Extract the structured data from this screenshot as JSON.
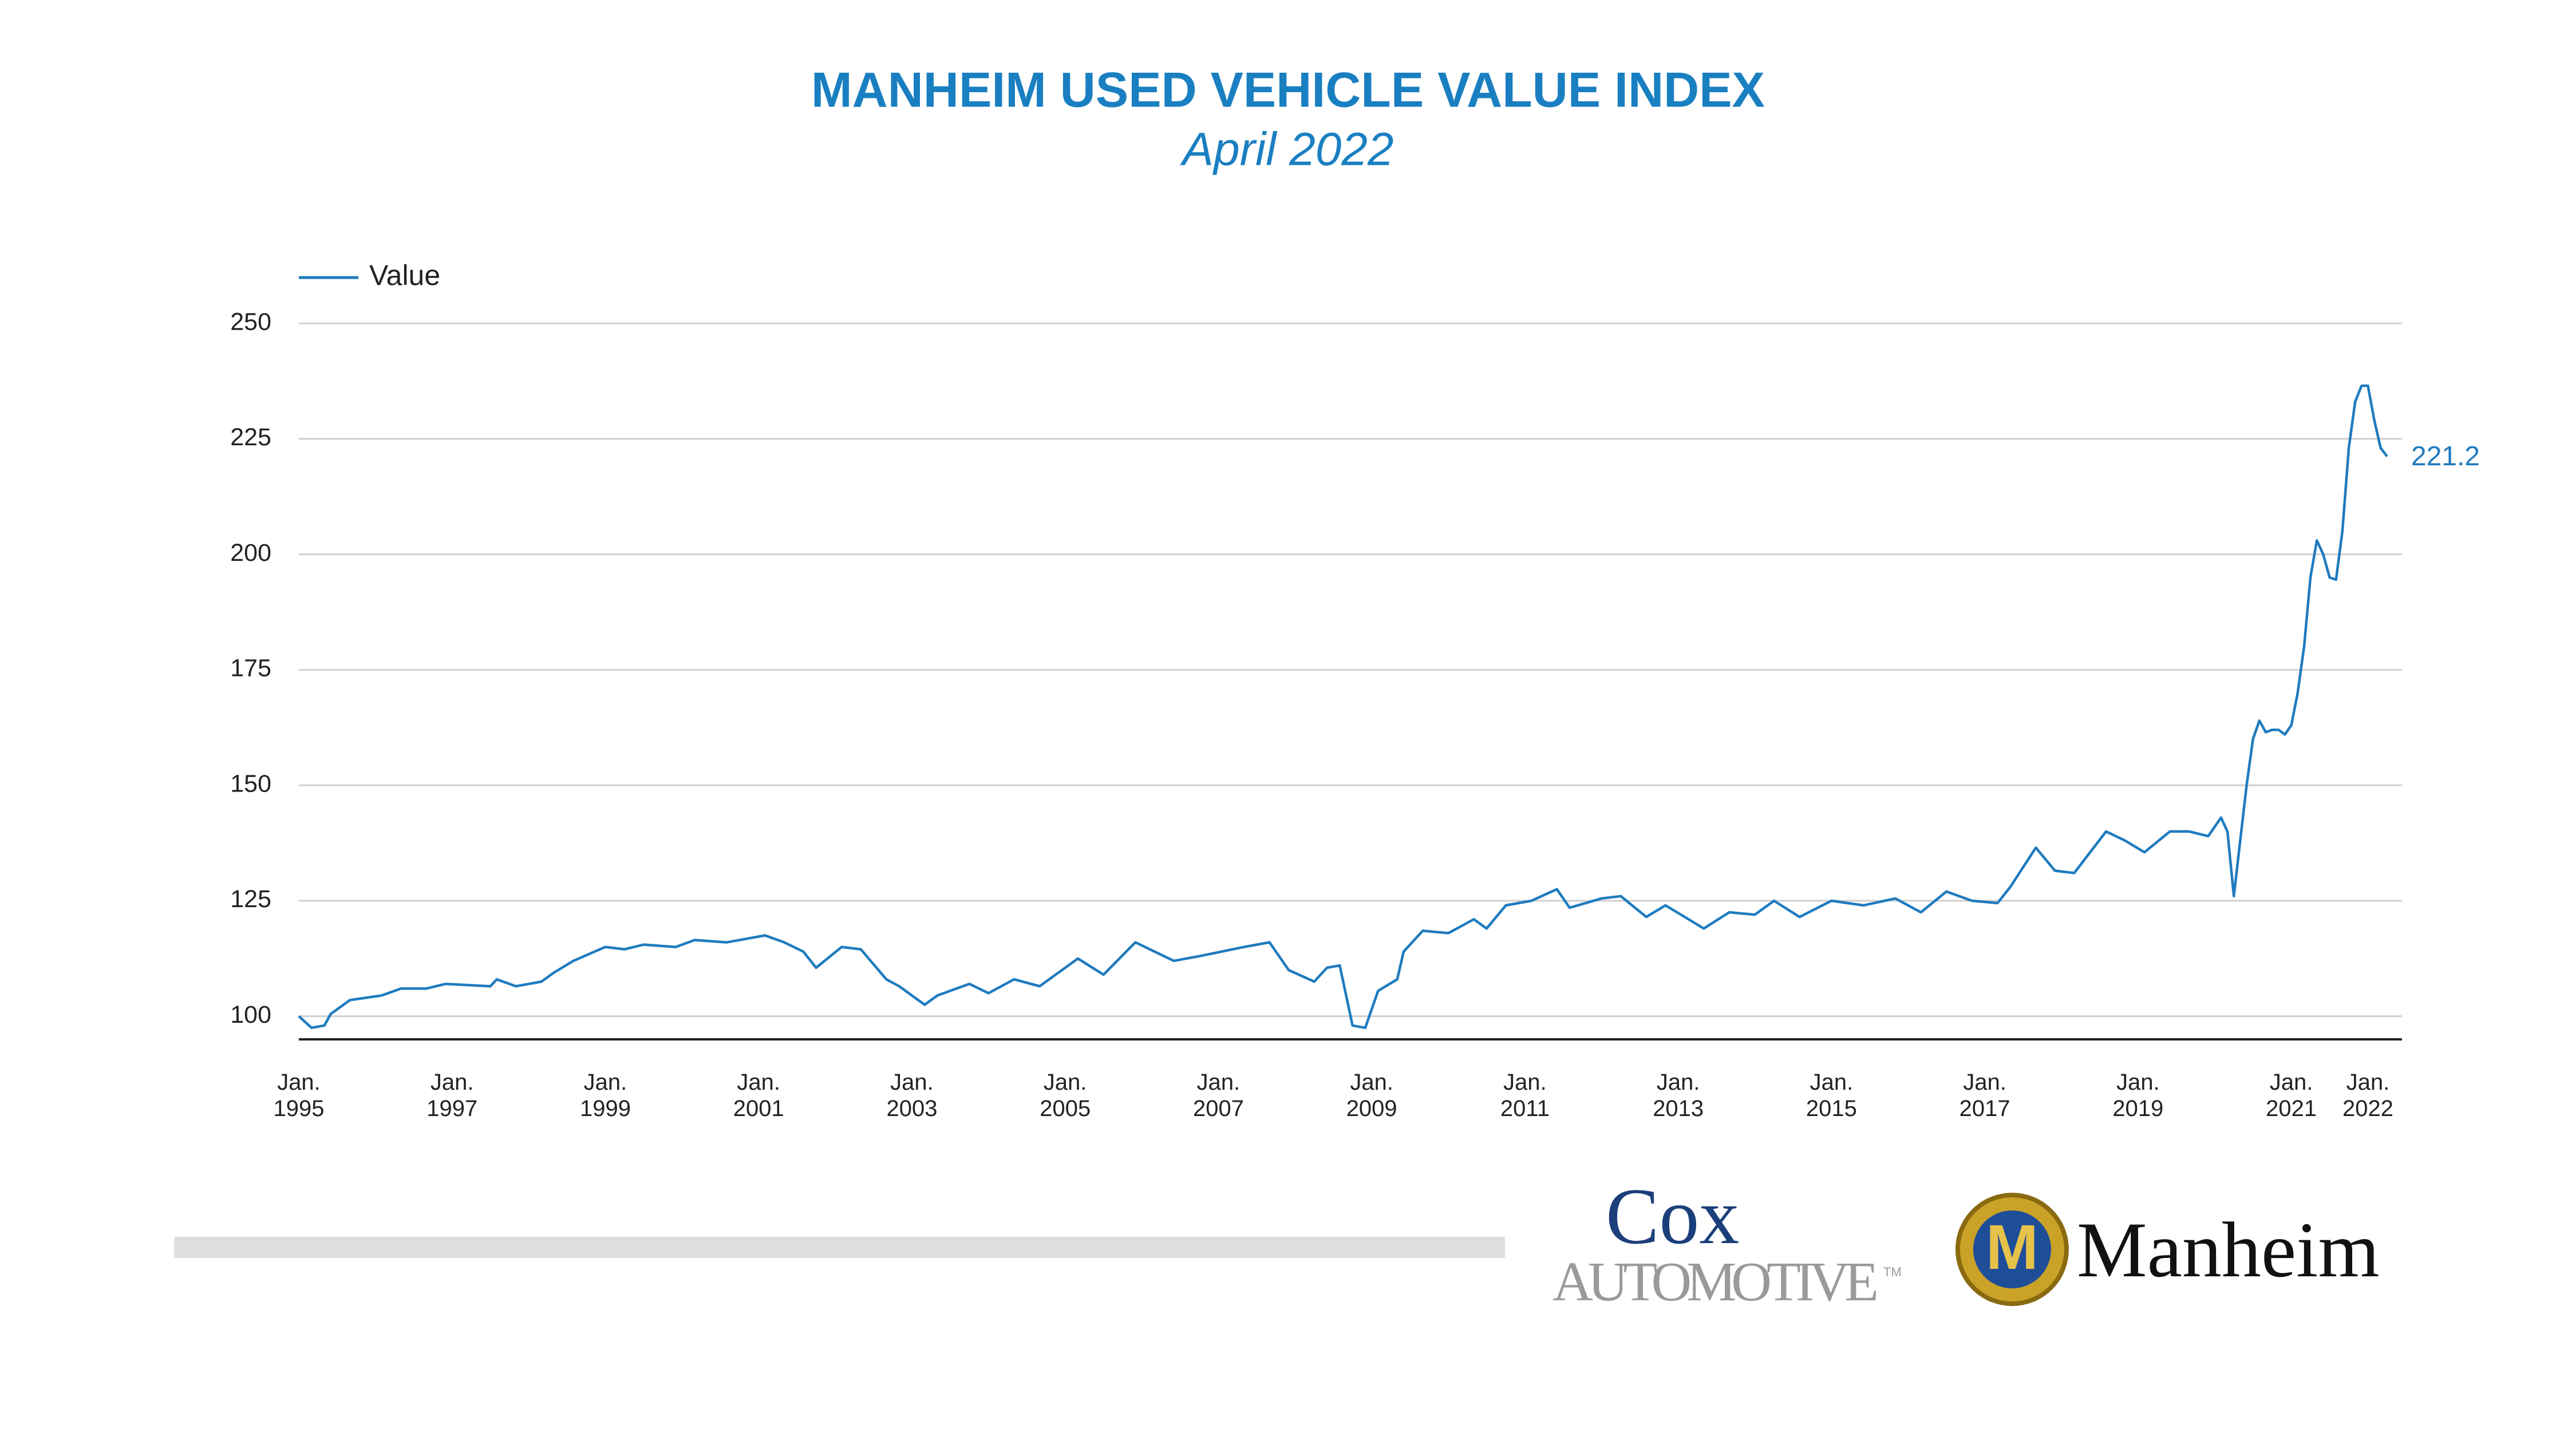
{
  "chart_data": {
    "type": "line",
    "title": "MANHEIM USED VEHICLE VALUE INDEX",
    "subtitle": "April 2022",
    "x": [
      "1995-01",
      "1995-03",
      "1995-05",
      "1995-06",
      "1995-09",
      "1996-02",
      "1996-05",
      "1996-09",
      "1996-12",
      "1997-07",
      "1997-08",
      "1997-11",
      "1998-03",
      "1998-05",
      "1998-08",
      "1999-01",
      "1999-04",
      "1999-07",
      "1999-12",
      "2000-03",
      "2000-08",
      "2001-02",
      "2001-05",
      "2001-08",
      "2001-10",
      "2002-02",
      "2002-05",
      "2002-09",
      "2002-11",
      "2003-03",
      "2003-05",
      "2003-10",
      "2004-01",
      "2004-05",
      "2004-09",
      "2005-03",
      "2005-07",
      "2005-12",
      "2006-06",
      "2006-10",
      "2007-05",
      "2007-09",
      "2007-12",
      "2008-04",
      "2008-06",
      "2008-08",
      "2008-10",
      "2008-12",
      "2009-02",
      "2009-05",
      "2009-06",
      "2009-09",
      "2010-01",
      "2010-05",
      "2010-07",
      "2010-10",
      "2011-02",
      "2011-06",
      "2011-08",
      "2012-01",
      "2012-04",
      "2012-08",
      "2012-11",
      "2013-05",
      "2013-09",
      "2014-01",
      "2014-04",
      "2014-08",
      "2015-01",
      "2015-06",
      "2015-11",
      "2016-03",
      "2016-07",
      "2016-11",
      "2017-03",
      "2017-05",
      "2017-09",
      "2017-12",
      "2018-03",
      "2018-08",
      "2018-11",
      "2019-02",
      "2019-06",
      "2019-09",
      "2019-12",
      "2020-01",
      "2020-02",
      "2020-03",
      "2020-04",
      "2020-05",
      "2020-06",
      "2020-07",
      "2020-08",
      "2020-09",
      "2020-10",
      "2020-11",
      "2020-12",
      "2021-01",
      "2021-02",
      "2021-03",
      "2021-04",
      "2021-05",
      "2021-06",
      "2021-07",
      "2021-08",
      "2021-09",
      "2021-10",
      "2021-11",
      "2021-12",
      "2022-01",
      "2022-02",
      "2022-03",
      "2022-04"
    ],
    "series": [
      {
        "name": "Value",
        "color": "#1f7bbf",
        "values": [
          100,
          97.5,
          98,
          100.5,
          103.5,
          104.5,
          106,
          106,
          107,
          106.5,
          108,
          106.5,
          107.5,
          109.5,
          112,
          115,
          114.5,
          115.5,
          115,
          116.5,
          116,
          117.5,
          116,
          114,
          110.5,
          115,
          114.5,
          108,
          106.5,
          102.5,
          104.5,
          107,
          105,
          108,
          106.5,
          112.5,
          109,
          116,
          112,
          113,
          115,
          116,
          110,
          107.5,
          110.5,
          111,
          98,
          97.5,
          105.5,
          108,
          114,
          118.5,
          118,
          121,
          119,
          124,
          125,
          127.5,
          123.5,
          125.5,
          126,
          121.5,
          124,
          119,
          122.5,
          122,
          125,
          121.5,
          125,
          124,
          125.5,
          122.5,
          127,
          125,
          124.5,
          128,
          136.5,
          131.5,
          131,
          140,
          138,
          135.5,
          140,
          140,
          139,
          141,
          143,
          140,
          126,
          138,
          150,
          160,
          164,
          161.5,
          162,
          162,
          161,
          163,
          170,
          180,
          195,
          203,
          200,
          195,
          194.5,
          205,
          223,
          233,
          236.5,
          236.5,
          229,
          223,
          221.2
        ]
      }
    ],
    "xlim": [
      "1995-01",
      "2022-04"
    ],
    "xticks": [
      {
        "value": "1995-01",
        "label": "Jan. 1995"
      },
      {
        "value": "1997-01",
        "label": "Jan. 1997"
      },
      {
        "value": "1999-01",
        "label": "Jan. 1999"
      },
      {
        "value": "2001-01",
        "label": "Jan. 2001"
      },
      {
        "value": "2003-01",
        "label": "Jan. 2003"
      },
      {
        "value": "2005-01",
        "label": "Jan. 2005"
      },
      {
        "value": "2007-01",
        "label": "Jan. 2007"
      },
      {
        "value": "2009-01",
        "label": "Jan. 2009"
      },
      {
        "value": "2011-01",
        "label": "Jan. 2011"
      },
      {
        "value": "2013-01",
        "label": "Jan. 2013"
      },
      {
        "value": "2015-01",
        "label": "Jan. 2015"
      },
      {
        "value": "2017-01",
        "label": "Jan. 2017"
      },
      {
        "value": "2019-01",
        "label": "Jan. 2019"
      },
      {
        "value": "2021-01",
        "label": "Jan. 2021"
      },
      {
        "value": "2022-01",
        "label": "Jan. 2022"
      }
    ],
    "ylim": [
      95,
      250
    ],
    "yticks": [
      100,
      125,
      150,
      175,
      200,
      225,
      250
    ],
    "grid": true,
    "legend": "top-left",
    "end_label": true
  },
  "logos": {
    "cox": "Cox",
    "automotive": "Automotive",
    "tm": "TM",
    "badge": "M",
    "manheim": "Manheim"
  }
}
